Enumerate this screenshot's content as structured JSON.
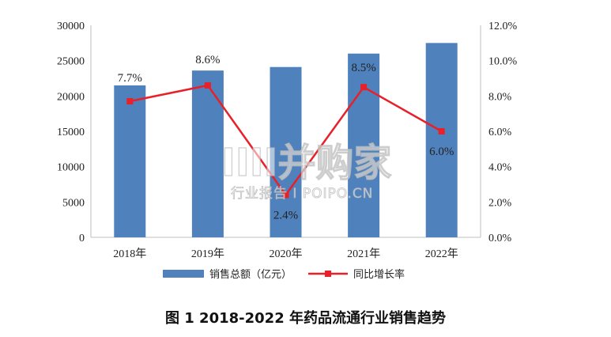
{
  "chart_data": {
    "type": "bar",
    "categories": [
      "2018年",
      "2019年",
      "2020年",
      "2021年",
      "2022年"
    ],
    "series": [
      {
        "name": "销售总额（亿元）",
        "type": "bar",
        "axis": "left",
        "color": "#4f81bd",
        "values": [
          21500,
          23600,
          24100,
          26000,
          27500
        ]
      },
      {
        "name": "同比增长率",
        "type": "line",
        "axis": "right",
        "color": "#e8202a",
        "values": [
          7.7,
          8.6,
          2.4,
          8.5,
          6.0
        ],
        "labels": [
          "7.7%",
          "8.6%",
          "2.4%",
          "8.5%",
          "6.0%"
        ]
      }
    ],
    "ylim_left": [
      0,
      30000
    ],
    "yticks_left": [
      "0",
      "5000",
      "10000",
      "15000",
      "20000",
      "25000",
      "30000"
    ],
    "ylim_right": [
      0,
      12
    ],
    "yticks_right": [
      "0.0%",
      "2.0%",
      "4.0%",
      "6.0%",
      "8.0%",
      "10.0%",
      "12.0%"
    ],
    "legend_position": "bottom",
    "grid": false
  },
  "watermark": {
    "main": "IIII并购家",
    "sub": "行业报告 I POIPO.CN"
  },
  "caption": "图 1    2018-2022 年药品流通行业销售趋势"
}
